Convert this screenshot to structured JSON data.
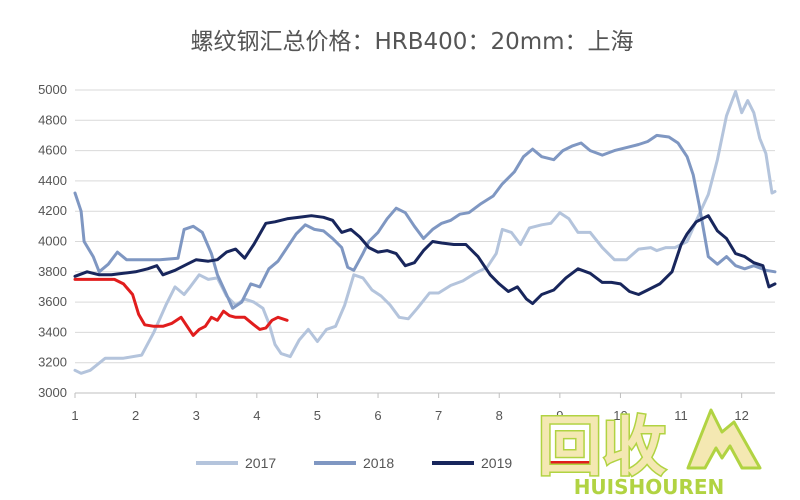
{
  "chart_data": {
    "type": "line",
    "title": "螺纹钢汇总价格：HRB400：20mm：上海",
    "xlabel": "",
    "ylabel": "",
    "xlim": [
      1,
      12.55
    ],
    "ylim": [
      3000,
      5000
    ],
    "x_ticks": [
      "1",
      "2",
      "3",
      "4",
      "5",
      "6",
      "7",
      "8",
      "9",
      "10",
      "11",
      "12"
    ],
    "y_ticks": [
      "3000",
      "3200",
      "3400",
      "3600",
      "3800",
      "4000",
      "4200",
      "4400",
      "4600",
      "4800",
      "5000"
    ],
    "grid": "horizontal",
    "legend_position": "bottom",
    "series": [
      {
        "name": "2017",
        "color": "#b4c4dc",
        "points": [
          [
            1.0,
            3150
          ],
          [
            1.1,
            3130
          ],
          [
            1.25,
            3150
          ],
          [
            1.5,
            3230
          ],
          [
            1.8,
            3230
          ],
          [
            2.1,
            3250
          ],
          [
            2.3,
            3400
          ],
          [
            2.5,
            3580
          ],
          [
            2.65,
            3700
          ],
          [
            2.8,
            3650
          ],
          [
            2.9,
            3700
          ],
          [
            3.05,
            3780
          ],
          [
            3.2,
            3750
          ],
          [
            3.35,
            3760
          ],
          [
            3.5,
            3640
          ],
          [
            3.65,
            3580
          ],
          [
            3.8,
            3620
          ],
          [
            3.95,
            3600
          ],
          [
            4.1,
            3560
          ],
          [
            4.2,
            3460
          ],
          [
            4.3,
            3320
          ],
          [
            4.4,
            3260
          ],
          [
            4.55,
            3240
          ],
          [
            4.7,
            3350
          ],
          [
            4.85,
            3420
          ],
          [
            5.0,
            3340
          ],
          [
            5.15,
            3420
          ],
          [
            5.3,
            3440
          ],
          [
            5.45,
            3580
          ],
          [
            5.6,
            3780
          ],
          [
            5.75,
            3760
          ],
          [
            5.9,
            3680
          ],
          [
            6.05,
            3640
          ],
          [
            6.2,
            3580
          ],
          [
            6.35,
            3500
          ],
          [
            6.5,
            3490
          ],
          [
            6.65,
            3560
          ],
          [
            6.85,
            3660
          ],
          [
            7.0,
            3660
          ],
          [
            7.2,
            3710
          ],
          [
            7.4,
            3740
          ],
          [
            7.6,
            3790
          ],
          [
            7.8,
            3830
          ],
          [
            7.95,
            3920
          ],
          [
            8.05,
            4080
          ],
          [
            8.2,
            4060
          ],
          [
            8.35,
            3980
          ],
          [
            8.5,
            4090
          ],
          [
            8.7,
            4110
          ],
          [
            8.85,
            4120
          ],
          [
            9.0,
            4190
          ],
          [
            9.15,
            4150
          ],
          [
            9.3,
            4060
          ],
          [
            9.5,
            4060
          ],
          [
            9.7,
            3960
          ],
          [
            9.9,
            3880
          ],
          [
            10.1,
            3880
          ],
          [
            10.3,
            3950
          ],
          [
            10.5,
            3960
          ],
          [
            10.6,
            3940
          ],
          [
            10.75,
            3960
          ],
          [
            10.9,
            3960
          ],
          [
            11.1,
            4000
          ],
          [
            11.3,
            4180
          ],
          [
            11.45,
            4310
          ],
          [
            11.6,
            4540
          ],
          [
            11.75,
            4830
          ],
          [
            11.9,
            4990
          ],
          [
            12.0,
            4850
          ],
          [
            12.1,
            4930
          ],
          [
            12.2,
            4850
          ],
          [
            12.3,
            4680
          ],
          [
            12.4,
            4580
          ],
          [
            12.5,
            4320
          ],
          [
            12.55,
            4330
          ]
        ]
      },
      {
        "name": "2018",
        "color": "#7f97c2",
        "points": [
          [
            1.0,
            4320
          ],
          [
            1.1,
            4200
          ],
          [
            1.15,
            4000
          ],
          [
            1.3,
            3900
          ],
          [
            1.4,
            3800
          ],
          [
            1.55,
            3850
          ],
          [
            1.7,
            3930
          ],
          [
            1.85,
            3880
          ],
          [
            2.1,
            3880
          ],
          [
            2.4,
            3880
          ],
          [
            2.7,
            3890
          ],
          [
            2.8,
            4080
          ],
          [
            2.95,
            4100
          ],
          [
            3.1,
            4060
          ],
          [
            3.25,
            3920
          ],
          [
            3.35,
            3780
          ],
          [
            3.5,
            3650
          ],
          [
            3.6,
            3560
          ],
          [
            3.75,
            3600
          ],
          [
            3.9,
            3720
          ],
          [
            4.05,
            3700
          ],
          [
            4.2,
            3820
          ],
          [
            4.35,
            3870
          ],
          [
            4.5,
            3960
          ],
          [
            4.65,
            4050
          ],
          [
            4.8,
            4110
          ],
          [
            4.95,
            4080
          ],
          [
            5.1,
            4070
          ],
          [
            5.25,
            4020
          ],
          [
            5.4,
            3960
          ],
          [
            5.5,
            3830
          ],
          [
            5.6,
            3810
          ],
          [
            5.75,
            3920
          ],
          [
            5.85,
            4000
          ],
          [
            6.0,
            4060
          ],
          [
            6.15,
            4150
          ],
          [
            6.3,
            4220
          ],
          [
            6.45,
            4190
          ],
          [
            6.6,
            4100
          ],
          [
            6.75,
            4020
          ],
          [
            6.9,
            4080
          ],
          [
            7.05,
            4120
          ],
          [
            7.2,
            4140
          ],
          [
            7.35,
            4180
          ],
          [
            7.5,
            4190
          ],
          [
            7.7,
            4250
          ],
          [
            7.9,
            4300
          ],
          [
            8.05,
            4380
          ],
          [
            8.25,
            4460
          ],
          [
            8.4,
            4560
          ],
          [
            8.55,
            4610
          ],
          [
            8.7,
            4560
          ],
          [
            8.9,
            4540
          ],
          [
            9.05,
            4600
          ],
          [
            9.2,
            4630
          ],
          [
            9.35,
            4650
          ],
          [
            9.5,
            4600
          ],
          [
            9.7,
            4570
          ],
          [
            9.9,
            4600
          ],
          [
            10.1,
            4620
          ],
          [
            10.3,
            4640
          ],
          [
            10.45,
            4660
          ],
          [
            10.6,
            4700
          ],
          [
            10.8,
            4690
          ],
          [
            10.95,
            4650
          ],
          [
            11.1,
            4560
          ],
          [
            11.2,
            4440
          ],
          [
            11.3,
            4240
          ],
          [
            11.45,
            3900
          ],
          [
            11.6,
            3850
          ],
          [
            11.75,
            3900
          ],
          [
            11.9,
            3840
          ],
          [
            12.05,
            3820
          ],
          [
            12.2,
            3840
          ],
          [
            12.4,
            3810
          ],
          [
            12.55,
            3800
          ]
        ]
      },
      {
        "name": "2019",
        "color": "#18265c",
        "points": [
          [
            1.0,
            3770
          ],
          [
            1.2,
            3800
          ],
          [
            1.4,
            3780
          ],
          [
            1.6,
            3780
          ],
          [
            1.8,
            3790
          ],
          [
            2.0,
            3800
          ],
          [
            2.2,
            3820
          ],
          [
            2.35,
            3840
          ],
          [
            2.45,
            3780
          ],
          [
            2.65,
            3810
          ],
          [
            2.85,
            3850
          ],
          [
            3.0,
            3880
          ],
          [
            3.2,
            3870
          ],
          [
            3.35,
            3880
          ],
          [
            3.5,
            3930
          ],
          [
            3.65,
            3950
          ],
          [
            3.8,
            3890
          ],
          [
            3.95,
            3980
          ],
          [
            4.15,
            4120
          ],
          [
            4.3,
            4130
          ],
          [
            4.5,
            4150
          ],
          [
            4.7,
            4160
          ],
          [
            4.9,
            4170
          ],
          [
            5.1,
            4160
          ],
          [
            5.25,
            4140
          ],
          [
            5.4,
            4060
          ],
          [
            5.55,
            4080
          ],
          [
            5.7,
            4030
          ],
          [
            5.85,
            3960
          ],
          [
            6.0,
            3930
          ],
          [
            6.15,
            3940
          ],
          [
            6.3,
            3920
          ],
          [
            6.45,
            3840
          ],
          [
            6.6,
            3860
          ],
          [
            6.75,
            3940
          ],
          [
            6.9,
            4000
          ],
          [
            7.05,
            3990
          ],
          [
            7.25,
            3980
          ],
          [
            7.45,
            3980
          ],
          [
            7.65,
            3900
          ],
          [
            7.85,
            3780
          ],
          [
            8.0,
            3720
          ],
          [
            8.15,
            3670
          ],
          [
            8.3,
            3700
          ],
          [
            8.45,
            3620
          ],
          [
            8.55,
            3590
          ],
          [
            8.7,
            3650
          ],
          [
            8.9,
            3680
          ],
          [
            9.1,
            3760
          ],
          [
            9.3,
            3820
          ],
          [
            9.5,
            3790
          ],
          [
            9.7,
            3730
          ],
          [
            9.85,
            3730
          ],
          [
            10.0,
            3720
          ],
          [
            10.15,
            3670
          ],
          [
            10.3,
            3650
          ],
          [
            10.45,
            3680
          ],
          [
            10.65,
            3720
          ],
          [
            10.85,
            3800
          ],
          [
            11.0,
            3980
          ],
          [
            11.1,
            4050
          ],
          [
            11.25,
            4130
          ],
          [
            11.45,
            4170
          ],
          [
            11.6,
            4070
          ],
          [
            11.75,
            4020
          ],
          [
            11.9,
            3920
          ],
          [
            12.05,
            3900
          ],
          [
            12.2,
            3860
          ],
          [
            12.35,
            3840
          ],
          [
            12.45,
            3700
          ],
          [
            12.55,
            3720
          ]
        ]
      },
      {
        "name": "",
        "color": "#e11d1d",
        "points": [
          [
            1.0,
            3750
          ],
          [
            1.3,
            3750
          ],
          [
            1.5,
            3750
          ],
          [
            1.65,
            3750
          ],
          [
            1.8,
            3720
          ],
          [
            1.95,
            3650
          ],
          [
            2.05,
            3520
          ],
          [
            2.15,
            3450
          ],
          [
            2.3,
            3440
          ],
          [
            2.45,
            3440
          ],
          [
            2.6,
            3460
          ],
          [
            2.75,
            3500
          ],
          [
            2.85,
            3440
          ],
          [
            2.95,
            3380
          ],
          [
            3.05,
            3420
          ],
          [
            3.15,
            3440
          ],
          [
            3.25,
            3500
          ],
          [
            3.35,
            3480
          ],
          [
            3.45,
            3540
          ],
          [
            3.55,
            3510
          ],
          [
            3.65,
            3500
          ],
          [
            3.8,
            3500
          ],
          [
            3.95,
            3450
          ],
          [
            4.05,
            3420
          ],
          [
            4.15,
            3430
          ],
          [
            4.25,
            3480
          ],
          [
            4.35,
            3500
          ],
          [
            4.5,
            3480
          ]
        ]
      }
    ]
  },
  "watermark": {
    "cn": "回收",
    "en": "HUISHOUREN",
    "fill": "#f4e8b2",
    "outline": "#b1d342"
  }
}
